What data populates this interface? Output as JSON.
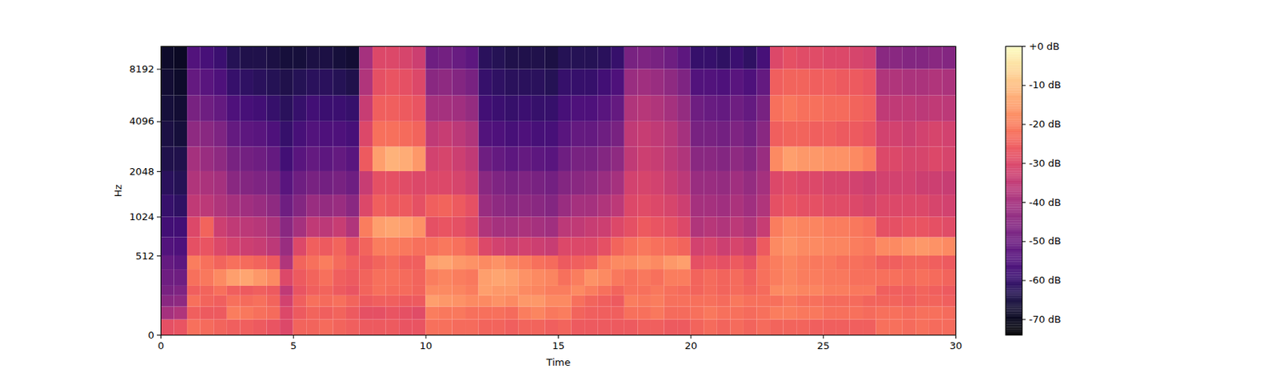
{
  "chart_data": {
    "type": "heatmap",
    "xlabel": "Time",
    "ylabel": "Hz",
    "xlim": [
      0,
      30
    ],
    "xticks": [
      0,
      5,
      10,
      15,
      20,
      25,
      30
    ],
    "ylim": [
      0,
      11025
    ],
    "yticks": [
      0,
      512,
      1024,
      2048,
      4096,
      8192
    ],
    "log": "y",
    "color": "magma",
    "x_edges": [
      0,
      0.5,
      1,
      1.5,
      2,
      2.5,
      3,
      3.5,
      4,
      4.5,
      5,
      5.5,
      6,
      6.5,
      7,
      7.5,
      8,
      8.5,
      9,
      9.5,
      10,
      10.5,
      11,
      11.5,
      12,
      12.5,
      13,
      13.5,
      14,
      14.5,
      15,
      15.5,
      16,
      16.5,
      17,
      17.5,
      18,
      18.5,
      19,
      19.5,
      20,
      20.5,
      21,
      21.5,
      22,
      22.5,
      23,
      23.5,
      24,
      24.5,
      25,
      25.5,
      26,
      26.5,
      27,
      27.5,
      28,
      28.5,
      29,
      29.5,
      30
    ],
    "y_edges": [
      0,
      64,
      128,
      192,
      256,
      384,
      512,
      724,
      1024,
      1448,
      2048,
      2896,
      4096,
      5793,
      8192,
      11025
    ],
    "cells": [
      [
        -28,
        -40,
        -45,
        -48,
        -50,
        -52,
        -55,
        -58,
        -60,
        -62,
        -64,
        -65,
        -66,
        -67,
        -68
      ],
      [
        -27,
        -38,
        -44,
        -47,
        -50,
        -53,
        -56,
        -58,
        -61,
        -63,
        -64,
        -66,
        -67,
        -68,
        -69
      ],
      [
        -22,
        -25,
        -22,
        -25,
        -22,
        -20,
        -28,
        -30,
        -35,
        -38,
        -40,
        -44,
        -48,
        -52,
        -55
      ],
      [
        -23,
        -26,
        -24,
        -24,
        -21,
        -22,
        -27,
        -24,
        -36,
        -39,
        -42,
        -45,
        -50,
        -54,
        -57
      ],
      [
        -24,
        -26,
        -25,
        -22,
        -18,
        -24,
        -30,
        -33,
        -38,
        -40,
        -44,
        -47,
        -52,
        -56,
        -59
      ],
      [
        -25,
        -20,
        -22,
        -25,
        -15,
        -22,
        -32,
        -35,
        -40,
        -45,
        -48,
        -52,
        -56,
        -60,
        -63
      ],
      [
        -25,
        -21,
        -23,
        -26,
        -14,
        -23,
        -33,
        -36,
        -41,
        -46,
        -49,
        -53,
        -57,
        -61,
        -64
      ],
      [
        -26,
        -22,
        -22,
        -25,
        -16,
        -24,
        -34,
        -37,
        -42,
        -47,
        -50,
        -54,
        -58,
        -62,
        -64
      ],
      [
        -27,
        -23,
        -24,
        -26,
        -18,
        -26,
        -36,
        -39,
        -44,
        -48,
        -52,
        -56,
        -60,
        -63,
        -65
      ],
      [
        -30,
        -30,
        -32,
        -35,
        -30,
        -38,
        -42,
        -45,
        -50,
        -54,
        -58,
        -60,
        -62,
        -64,
        -66
      ],
      [
        -24,
        -26,
        -25,
        -27,
        -26,
        -24,
        -30,
        -40,
        -46,
        -50,
        -54,
        -57,
        -60,
        -63,
        -66
      ],
      [
        -24,
        -24,
        -22,
        -25,
        -24,
        -22,
        -25,
        -35,
        -42,
        -48,
        -52,
        -55,
        -58,
        -62,
        -65
      ],
      [
        -23,
        -25,
        -23,
        -24,
        -22,
        -20,
        -26,
        -36,
        -43,
        -49,
        -53,
        -56,
        -59,
        -62,
        -65
      ],
      [
        -24,
        -24,
        -22,
        -26,
        -25,
        -23,
        -24,
        -34,
        -42,
        -48,
        -52,
        -56,
        -59,
        -63,
        -66
      ],
      [
        -25,
        -26,
        -24,
        -27,
        -26,
        -25,
        -28,
        -38,
        -45,
        -50,
        -54,
        -57,
        -60,
        -64,
        -67
      ],
      [
        -26,
        -28,
        -26,
        -24,
        -24,
        -26,
        -24,
        -20,
        -30,
        -34,
        -26,
        -30,
        -34,
        -38,
        -40
      ],
      [
        -26,
        -28,
        -25,
        -22,
        -22,
        -24,
        -20,
        -15,
        -25,
        -28,
        -15,
        -22,
        -25,
        -28,
        -30
      ],
      [
        -26,
        -27,
        -25,
        -23,
        -22,
        -23,
        -20,
        -14,
        -26,
        -28,
        -12,
        -22,
        -25,
        -27,
        -30
      ],
      [
        -27,
        -28,
        -26,
        -23,
        -23,
        -25,
        -21,
        -15,
        -26,
        -29,
        -13,
        -23,
        -26,
        -28,
        -31
      ],
      [
        -27,
        -29,
        -26,
        -24,
        -24,
        -25,
        -22,
        -17,
        -28,
        -30,
        -16,
        -24,
        -27,
        -30,
        -33
      ],
      [
        -22,
        -20,
        -15,
        -18,
        -20,
        -15,
        -22,
        -28,
        -25,
        -30,
        -32,
        -35,
        -40,
        -45,
        -50
      ],
      [
        -22,
        -21,
        -16,
        -18,
        -19,
        -14,
        -21,
        -27,
        -24,
        -30,
        -31,
        -34,
        -40,
        -44,
        -49
      ],
      [
        -23,
        -21,
        -17,
        -19,
        -20,
        -16,
        -22,
        -28,
        -26,
        -31,
        -33,
        -36,
        -41,
        -46,
        -51
      ],
      [
        -23,
        -22,
        -18,
        -20,
        -21,
        -17,
        -24,
        -30,
        -28,
        -33,
        -35,
        -38,
        -43,
        -48,
        -53
      ],
      [
        -24,
        -22,
        -18,
        -15,
        -15,
        -18,
        -30,
        -38,
        -42,
        -45,
        -50,
        -55,
        -58,
        -60,
        -62
      ],
      [
        -24,
        -22,
        -17,
        -16,
        -14,
        -17,
        -32,
        -40,
        -44,
        -47,
        -52,
        -56,
        -59,
        -61,
        -63
      ],
      [
        -25,
        -23,
        -18,
        -16,
        -15,
        -19,
        -33,
        -40,
        -45,
        -48,
        -53,
        -57,
        -60,
        -62,
        -64
      ],
      [
        -24,
        -20,
        -16,
        -18,
        -17,
        -20,
        -32,
        -39,
        -44,
        -47,
        -52,
        -56,
        -59,
        -62,
        -64
      ],
      [
        -24,
        -19,
        -16,
        -19,
        -18,
        -22,
        -33,
        -40,
        -45,
        -48,
        -53,
        -57,
        -60,
        -62,
        -64
      ],
      [
        -25,
        -21,
        -18,
        -20,
        -19,
        -23,
        -34,
        -41,
        -46,
        -49,
        -54,
        -57,
        -60,
        -63,
        -65
      ],
      [
        -24,
        -20,
        -18,
        -20,
        -22,
        -26,
        -30,
        -36,
        -42,
        -46,
        -50,
        -54,
        -57,
        -60,
        -63
      ],
      [
        -26,
        -24,
        -22,
        -18,
        -20,
        -25,
        -30,
        -35,
        -40,
        -45,
        -48,
        -52,
        -56,
        -60,
        -63
      ],
      [
        -26,
        -25,
        -24,
        -20,
        -17,
        -24,
        -30,
        -34,
        -40,
        -44,
        -48,
        -52,
        -56,
        -60,
        -63
      ],
      [
        -26,
        -25,
        -25,
        -22,
        -18,
        -20,
        -28,
        -33,
        -38,
        -42,
        -46,
        -50,
        -54,
        -58,
        -62
      ],
      [
        -26,
        -25,
        -26,
        -24,
        -21,
        -18,
        -24,
        -30,
        -36,
        -40,
        -44,
        -48,
        -52,
        -56,
        -60
      ],
      [
        -26,
        -22,
        -20,
        -22,
        -22,
        -18,
        -22,
        -28,
        -30,
        -32,
        -35,
        -35,
        -38,
        -42,
        -48
      ],
      [
        -25,
        -22,
        -21,
        -22,
        -21,
        -17,
        -21,
        -26,
        -29,
        -31,
        -33,
        -34,
        -37,
        -41,
        -47
      ],
      [
        -25,
        -21,
        -20,
        -21,
        -22,
        -18,
        -22,
        -27,
        -30,
        -32,
        -34,
        -35,
        -38,
        -42,
        -48
      ],
      [
        -26,
        -23,
        -22,
        -22,
        -20,
        -16,
        -23,
        -28,
        -31,
        -34,
        -36,
        -37,
        -40,
        -44,
        -50
      ],
      [
        -26,
        -23,
        -22,
        -23,
        -20,
        -15,
        -24,
        -30,
        -33,
        -36,
        -38,
        -40,
        -43,
        -47,
        -53
      ],
      [
        -24,
        -22,
        -22,
        -24,
        -24,
        -28,
        -32,
        -38,
        -40,
        -42,
        -45,
        -48,
        -50,
        -55,
        -60
      ],
      [
        -23,
        -21,
        -22,
        -23,
        -23,
        -27,
        -31,
        -37,
        -40,
        -42,
        -45,
        -48,
        -51,
        -55,
        -60
      ],
      [
        -24,
        -22,
        -23,
        -24,
        -24,
        -28,
        -33,
        -38,
        -41,
        -43,
        -46,
        -49,
        -52,
        -56,
        -61
      ],
      [
        -23,
        -22,
        -21,
        -23,
        -23,
        -26,
        -31,
        -36,
        -39,
        -41,
        -44,
        -47,
        -50,
        -54,
        -59
      ],
      [
        -24,
        -23,
        -22,
        -24,
        -25,
        -28,
        -33,
        -38,
        -41,
        -43,
        -46,
        -49,
        -52,
        -56,
        -61
      ],
      [
        -23,
        -22,
        -22,
        -23,
        -22,
        -22,
        -26,
        -34,
        -38,
        -40,
        -42,
        -45,
        -48,
        -52,
        -57
      ],
      [
        -24,
        -20,
        -22,
        -18,
        -20,
        -20,
        -18,
        -20,
        -28,
        -30,
        -18,
        -25,
        -22,
        -25,
        -30
      ],
      [
        -24,
        -20,
        -21,
        -18,
        -19,
        -19,
        -17,
        -18,
        -27,
        -29,
        -15,
        -24,
        -21,
        -24,
        -28
      ],
      [
        -24,
        -21,
        -22,
        -19,
        -20,
        -20,
        -18,
        -19,
        -28,
        -30,
        -16,
        -24,
        -22,
        -24,
        -29
      ],
      [
        -25,
        -21,
        -22,
        -19,
        -20,
        -21,
        -18,
        -19,
        -28,
        -30,
        -16,
        -25,
        -22,
        -25,
        -29
      ],
      [
        -25,
        -22,
        -23,
        -20,
        -21,
        -21,
        -19,
        -20,
        -29,
        -31,
        -17,
        -25,
        -23,
        -25,
        -30
      ],
      [
        -25,
        -22,
        -23,
        -20,
        -21,
        -22,
        -19,
        -20,
        -29,
        -31,
        -17,
        -26,
        -23,
        -26,
        -30
      ],
      [
        -25,
        -22,
        -23,
        -21,
        -22,
        -22,
        -20,
        -21,
        -30,
        -32,
        -18,
        -26,
        -24,
        -26,
        -31
      ],
      [
        -25,
        -23,
        -24,
        -21,
        -22,
        -23,
        -21,
        -22,
        -31,
        -33,
        -20,
        -27,
        -25,
        -27,
        -32
      ],
      [
        -22,
        -22,
        -24,
        -25,
        -22,
        -25,
        -18,
        -28,
        -30,
        -32,
        -30,
        -32,
        -35,
        -38,
        -45
      ],
      [
        -22,
        -22,
        -24,
        -25,
        -22,
        -25,
        -18,
        -28,
        -30,
        -32,
        -30,
        -32,
        -35,
        -38,
        -45
      ],
      [
        -23,
        -23,
        -25,
        -25,
        -23,
        -24,
        -17,
        -27,
        -30,
        -32,
        -31,
        -33,
        -35,
        -39,
        -46
      ],
      [
        -22,
        -22,
        -24,
        -24,
        -22,
        -24,
        -16,
        -27,
        -30,
        -33,
        -31,
        -32,
        -36,
        -39,
        -46
      ],
      [
        -23,
        -22,
        -24,
        -25,
        -23,
        -25,
        -17,
        -28,
        -31,
        -33,
        -30,
        -31,
        -35,
        -38,
        -45
      ],
      [
        -23,
        -23,
        -25,
        -26,
        -24,
        -26,
        -18,
        -29,
        -32,
        -34,
        -31,
        -32,
        -36,
        -39,
        -46
      ]
    ],
    "colorbar": {
      "range": [
        -74,
        0
      ],
      "ticks": [
        {
          "value": 0,
          "label": "+0 dB"
        },
        {
          "value": -10,
          "label": "-10 dB"
        },
        {
          "value": -20,
          "label": "-20 dB"
        },
        {
          "value": -30,
          "label": "-30 dB"
        },
        {
          "value": -40,
          "label": "-40 dB"
        },
        {
          "value": -50,
          "label": "-50 dB"
        },
        {
          "value": -60,
          "label": "-60 dB"
        },
        {
          "value": -70,
          "label": "-70 dB"
        }
      ]
    }
  }
}
